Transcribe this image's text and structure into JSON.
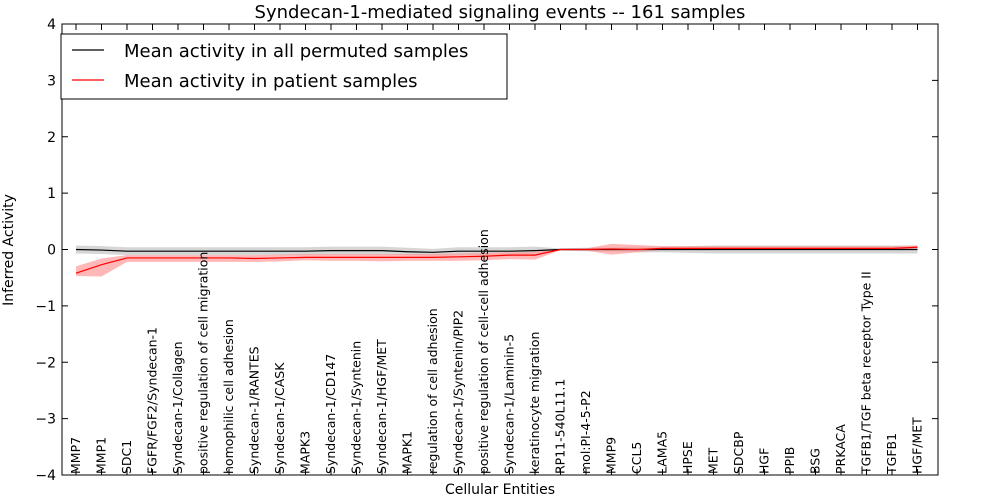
{
  "chart_data": {
    "type": "line",
    "title": "Syndecan-1-mediated signaling events -- 161 samples",
    "xlabel": "Cellular Entities",
    "ylabel": "Inferred Activity",
    "ylim": [
      -4,
      4
    ],
    "yticks": [
      -4,
      -3,
      -2,
      -1,
      0,
      1,
      2,
      3,
      4
    ],
    "ytick_labels": [
      "−4",
      "−3",
      "−2",
      "−1",
      "0",
      "1",
      "2",
      "3",
      "4"
    ],
    "grid": false,
    "legend_position": "top-left",
    "categories": [
      "MMP7",
      "MMP1",
      "SDC1",
      "FGFR/FGF2/Syndecan-1",
      "Syndecan-1/Collagen",
      "positive regulation of cell migration",
      "homophilic cell adhesion",
      "Syndecan-1/RANTES",
      "Syndecan-1/CASK",
      "MAPK3",
      "Syndecan-1/CD147",
      "Syndecan-1/Syntenin",
      "Syndecan-1/HGF/MET",
      "MAPK1",
      "regulation of cell adhesion",
      "Syndecan-1/Syntenin/PIP2",
      "positive regulation of cell-cell adhesion",
      "Syndecan-1/Laminin-5",
      "keratinocyte migration",
      "RP11-540L11.1",
      "mol:PI-4-5-P2",
      "MMP9",
      "CCL5",
      "LAMA5",
      "HPSE",
      "MET",
      "SDCBP",
      "HGF",
      "PPIB",
      "BSG",
      "PRKACA",
      "TGFB1/TGF beta receptor Type II",
      "TGFB1",
      "HGF/MET"
    ],
    "series": [
      {
        "name": "Mean activity in all permuted samples",
        "color": "#000000",
        "band_color": "#bbbbbb",
        "values": [
          0.0,
          -0.01,
          -0.03,
          -0.03,
          -0.03,
          -0.03,
          -0.03,
          -0.03,
          -0.03,
          -0.03,
          -0.02,
          -0.02,
          -0.02,
          -0.04,
          -0.05,
          -0.03,
          -0.03,
          -0.03,
          -0.02,
          0.0,
          0.0,
          0.0,
          0.0,
          0.0,
          0.0,
          0.0,
          0.0,
          0.0,
          0.0,
          0.0,
          0.0,
          0.0,
          0.0,
          0.0
        ],
        "lower": [
          -0.07,
          -0.08,
          -0.1,
          -0.1,
          -0.1,
          -0.1,
          -0.1,
          -0.1,
          -0.1,
          -0.1,
          -0.09,
          -0.09,
          -0.09,
          -0.1,
          -0.11,
          -0.1,
          -0.1,
          -0.1,
          -0.09,
          -0.02,
          -0.03,
          -0.04,
          -0.05,
          -0.05,
          -0.06,
          -0.07,
          -0.07,
          -0.07,
          -0.07,
          -0.07,
          -0.07,
          -0.07,
          -0.07,
          -0.07
        ],
        "upper": [
          0.07,
          0.06,
          0.04,
          0.04,
          0.04,
          0.04,
          0.04,
          0.04,
          0.04,
          0.04,
          0.05,
          0.05,
          0.05,
          0.03,
          0.01,
          0.04,
          0.04,
          0.04,
          0.05,
          0.02,
          0.03,
          0.04,
          0.05,
          0.05,
          0.06,
          0.07,
          0.07,
          0.07,
          0.07,
          0.07,
          0.07,
          0.07,
          0.07,
          0.07
        ]
      },
      {
        "name": "Mean activity in patient samples",
        "color": "#ff0000",
        "band_color": "#ff9999",
        "values": [
          -0.42,
          -0.27,
          -0.15,
          -0.15,
          -0.15,
          -0.15,
          -0.15,
          -0.16,
          -0.15,
          -0.14,
          -0.14,
          -0.14,
          -0.14,
          -0.14,
          -0.14,
          -0.13,
          -0.12,
          -0.1,
          -0.1,
          0.0,
          0.0,
          0.01,
          0.0,
          0.02,
          0.02,
          0.02,
          0.02,
          0.02,
          0.02,
          0.02,
          0.02,
          0.02,
          0.02,
          0.04
        ],
        "lower": [
          -0.47,
          -0.48,
          -0.22,
          -0.22,
          -0.22,
          -0.22,
          -0.22,
          -0.22,
          -0.21,
          -0.19,
          -0.2,
          -0.2,
          -0.21,
          -0.2,
          -0.2,
          -0.2,
          -0.19,
          -0.17,
          -0.18,
          -0.01,
          -0.02,
          -0.09,
          -0.05,
          0.0,
          0.0,
          0.0,
          0.0,
          0.0,
          0.0,
          0.0,
          0.0,
          0.0,
          0.0,
          0.02
        ],
        "upper": [
          -0.3,
          -0.16,
          -0.1,
          -0.1,
          -0.1,
          -0.1,
          -0.1,
          -0.1,
          -0.09,
          -0.08,
          -0.08,
          -0.08,
          -0.08,
          -0.08,
          -0.08,
          -0.07,
          -0.06,
          -0.05,
          -0.04,
          0.01,
          0.02,
          0.1,
          0.08,
          0.06,
          0.06,
          0.06,
          0.06,
          0.06,
          0.06,
          0.06,
          0.06,
          0.06,
          0.06,
          0.07
        ]
      }
    ]
  }
}
